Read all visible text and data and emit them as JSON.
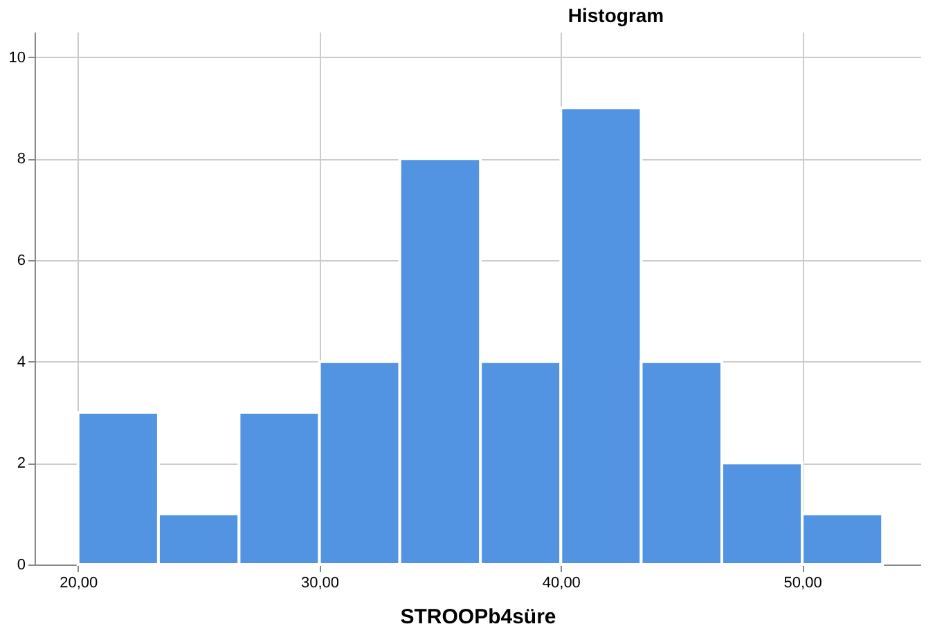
{
  "chart_data": {
    "type": "histogram",
    "title": "Histogram",
    "xlabel": "STROOPb4süre",
    "bins": [
      20,
      23.33,
      26.67,
      30,
      33.33,
      36.67,
      40,
      43.33,
      46.67,
      50,
      53.33
    ],
    "values": [
      3,
      1,
      3,
      4,
      8,
      4,
      9,
      4,
      2,
      1
    ],
    "color": "#5294e2",
    "xlim": [
      18.2,
      54.9
    ],
    "xticks": [
      {
        "value": 20,
        "label": "20,00"
      },
      {
        "value": 30,
        "label": "30,00"
      },
      {
        "value": 40,
        "label": "40,00"
      },
      {
        "value": 50,
        "label": "50,00"
      }
    ],
    "ylim": [
      0,
      10.5
    ],
    "yticks": [
      0,
      2,
      4,
      6,
      8,
      10
    ],
    "grid": true
  }
}
